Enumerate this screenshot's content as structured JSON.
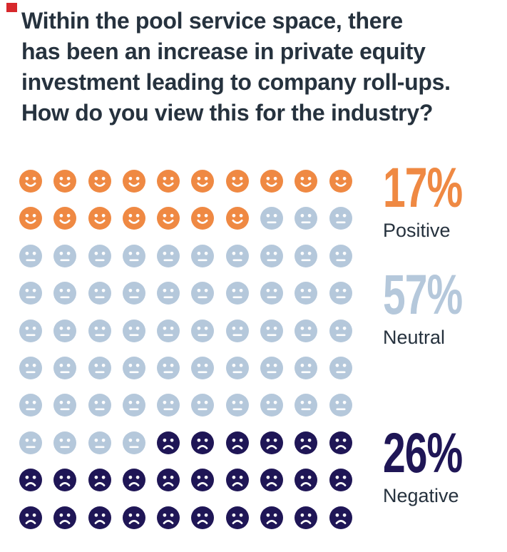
{
  "brand": {
    "mark_color": "#D7282C"
  },
  "header": {
    "title_lines": [
      "Within the pool service space, there",
      "has been an increase in private equity",
      "investment leading to company roll-ups.",
      "How do you view this for the industry?"
    ],
    "title_color": "#26323E"
  },
  "chart_data": {
    "type": "pictogram",
    "title": "Within the pool service space, there has been an increase in private equity investment leading to company roll-ups. How do you view this for the industry?",
    "layout": {
      "rows": 10,
      "cols": 10,
      "icons_total": 100,
      "unit_per_icon_percent": 1,
      "legend_position": "right"
    },
    "categories": [
      {
        "label": "Positive",
        "value": 17,
        "percent": "17%",
        "color": "#EF8943",
        "icon": "smile"
      },
      {
        "label": "Neutral",
        "value": 57,
        "percent": "57%",
        "color": "#B5C8DB",
        "icon": "neutral"
      },
      {
        "label": "Negative",
        "value": 26,
        "percent": "26%",
        "color": "#1F1656",
        "icon": "frown"
      }
    ]
  }
}
